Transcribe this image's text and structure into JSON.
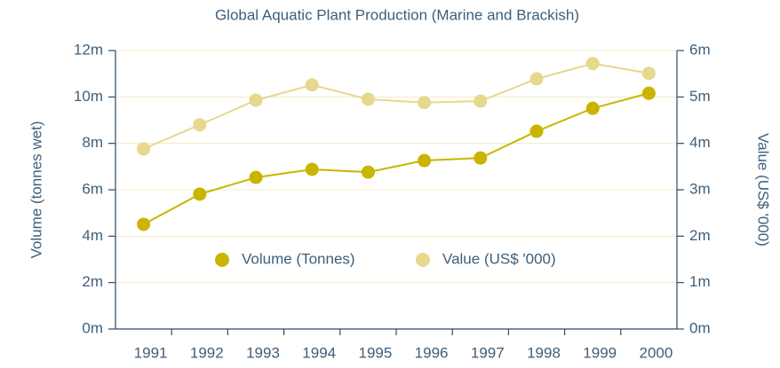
{
  "chart_data": {
    "type": "line",
    "title": "Global Aquatic Plant Production (Marine and Brackish)",
    "ylabel": "Volume (tonnes wet)",
    "y2label": "Value (US$ '000)",
    "categories": [
      "1991",
      "1992",
      "1993",
      "1994",
      "1995",
      "1996",
      "1997",
      "1998",
      "1999",
      "2000"
    ],
    "series": [
      {
        "name": "Volume (Tonnes)",
        "color": "#c9b500",
        "values": [
          4510000,
          5810000,
          6530000,
          6880000,
          6760000,
          7260000,
          7370000,
          8520000,
          9510000,
          10160000
        ]
      },
      {
        "name": "Value (US$ '000)",
        "color": "#e6d88c",
        "axis": "y2",
        "values": [
          3880000,
          4400000,
          4930000,
          5260000,
          4950000,
          4880000,
          4910000,
          5390000,
          5720000,
          5510000
        ]
      }
    ],
    "ylim": [
      0,
      12000000
    ],
    "yticks": [
      {
        "value": 0,
        "label": "0m"
      },
      {
        "value": 2000000,
        "label": "2m"
      },
      {
        "value": 4000000,
        "label": "4m"
      },
      {
        "value": 6000000,
        "label": "6m"
      },
      {
        "value": 8000000,
        "label": "8m"
      },
      {
        "value": 10000000,
        "label": "10m"
      },
      {
        "value": 12000000,
        "label": "12m"
      }
    ],
    "y2lim": [
      0,
      6000000
    ],
    "y2ticks": [
      {
        "value": 0,
        "label": "0m"
      },
      {
        "value": 1000000,
        "label": "1m"
      },
      {
        "value": 2000000,
        "label": "2m"
      },
      {
        "value": 3000000,
        "label": "3m"
      },
      {
        "value": 4000000,
        "label": "4m"
      },
      {
        "value": 5000000,
        "label": "5m"
      },
      {
        "value": 6000000,
        "label": "6m"
      }
    ],
    "grid": true
  }
}
